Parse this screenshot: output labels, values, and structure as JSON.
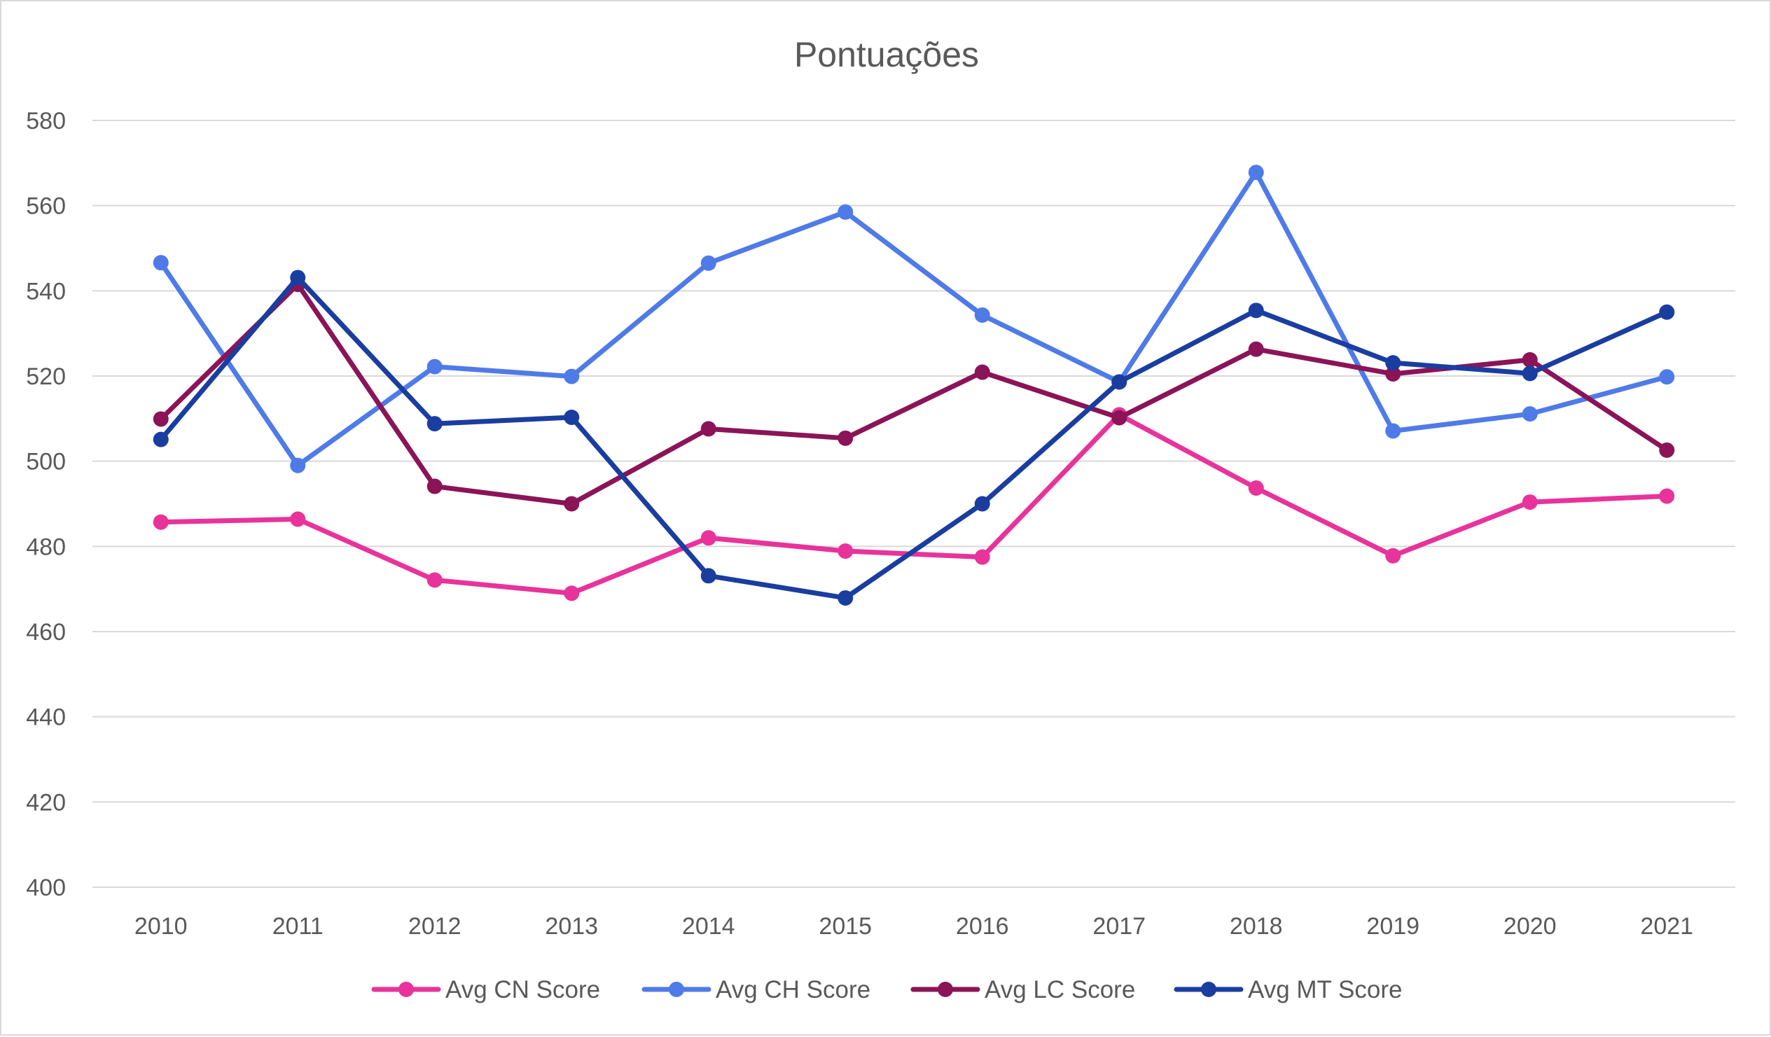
{
  "chart_data": {
    "type": "line",
    "title": "Pontuações",
    "xlabel": "",
    "ylabel": "",
    "categories": [
      "2010",
      "2011",
      "2012",
      "2013",
      "2014",
      "2015",
      "2016",
      "2017",
      "2018",
      "2019",
      "2020",
      "2021"
    ],
    "ylim": [
      400,
      580
    ],
    "yticks": [
      400,
      420,
      440,
      460,
      480,
      500,
      520,
      540,
      560,
      580
    ],
    "grid": true,
    "legend_position": "bottom",
    "series": [
      {
        "name": "Avg CN Score",
        "color": "#e8339a",
        "values": [
          485.7,
          486.4,
          472.1,
          469.0,
          482.0,
          478.9,
          477.5,
          510.9,
          493.7,
          477.8,
          490.4,
          491.8
        ]
      },
      {
        "name": "Avg CH Score",
        "color": "#4f7be8",
        "values": [
          546.6,
          499.0,
          522.2,
          519.9,
          546.5,
          558.5,
          534.3,
          518.6,
          567.8,
          507.1,
          511.1,
          519.8
        ]
      },
      {
        "name": "Avg LC Score",
        "color": "#8b1458",
        "values": [
          509.9,
          541.5,
          494.1,
          490.0,
          507.6,
          505.4,
          520.9,
          510.2,
          526.3,
          520.5,
          523.8,
          502.6
        ]
      },
      {
        "name": "Avg MT Score",
        "color": "#1a3da0",
        "values": [
          505.1,
          543.1,
          508.8,
          510.3,
          473.1,
          467.9,
          490.0,
          518.6,
          535.4,
          523.1,
          520.6,
          535.0
        ]
      }
    ]
  }
}
